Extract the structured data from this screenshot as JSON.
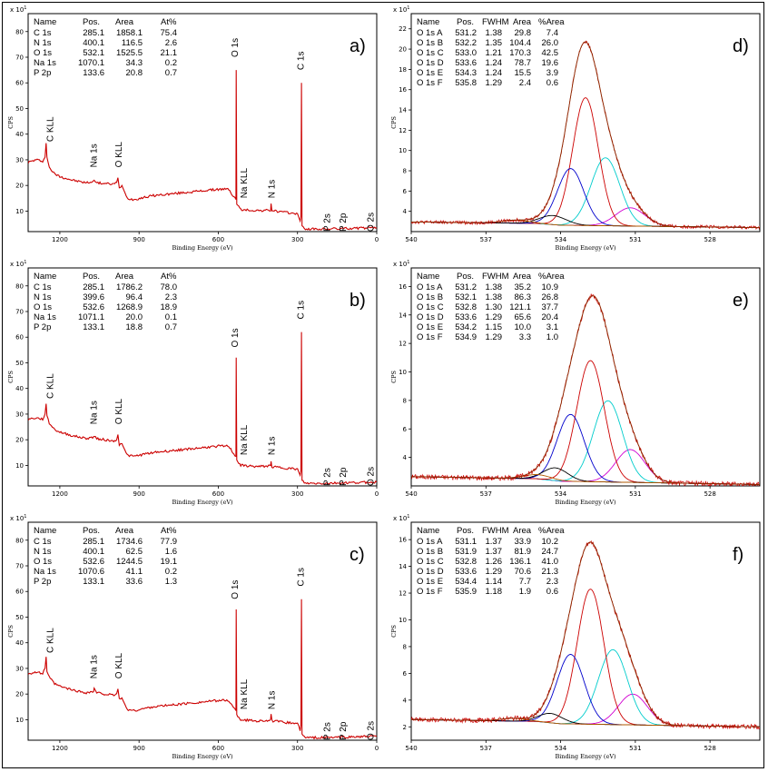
{
  "figure": {
    "x_axis_label": "Binding Energy (eV)",
    "y_axis_label": "CPS",
    "y_scale_label": "x 10",
    "y_scale_exp": "1"
  },
  "colors": {
    "spectrum": "#cc0000",
    "O 1s A": "#d100d1",
    "O 1s B": "#00cccc",
    "O 1s C": "#cc0000",
    "O 1s D": "#0000cc",
    "O 1s E": "#000000",
    "O 1s F": "#b25a00",
    "envelope": "#8b2a00",
    "background": "#000000"
  },
  "chart_data": [
    {
      "id": "a",
      "panel_label": "a)",
      "type": "line",
      "kind": "survey",
      "x_ticks": [
        "1200",
        "900",
        "600",
        "300",
        "0"
      ],
      "y_ticks": [
        "80",
        "70",
        "60",
        "50",
        "40",
        "30",
        "20",
        "10"
      ],
      "xlim": [
        1320,
        0
      ],
      "ylim": [
        2,
        87
      ],
      "spectrum_points": [
        [
          1320,
          29
        ],
        [
          1290,
          30
        ],
        [
          1265,
          29.5
        ],
        [
          1256,
          31
        ],
        [
          1252,
          36.5
        ],
        [
          1249,
          31
        ],
        [
          1240,
          27
        ],
        [
          1220,
          24.5
        ],
        [
          1200,
          23.5
        ],
        [
          1150,
          22
        ],
        [
          1100,
          21
        ],
        [
          1072,
          21.5
        ],
        [
          1070,
          22.5
        ],
        [
          1060,
          21
        ],
        [
          1000,
          20.5
        ],
        [
          985,
          21
        ],
        [
          980,
          23
        ],
        [
          975,
          19
        ],
        [
          965,
          20
        ],
        [
          945,
          15
        ],
        [
          920,
          14.5
        ],
        [
          850,
          16
        ],
        [
          700,
          17.5
        ],
        [
          600,
          18.5
        ],
        [
          560,
          18.5
        ],
        [
          545,
          16
        ],
        [
          533,
          14.5
        ],
        [
          532,
          65
        ],
        [
          530,
          13
        ],
        [
          515,
          10.5
        ],
        [
          450,
          10.2
        ],
        [
          402,
          10.3
        ],
        [
          400,
          13
        ],
        [
          397,
          10.2
        ],
        [
          350,
          9.5
        ],
        [
          300,
          9
        ],
        [
          290,
          6
        ],
        [
          287,
          8
        ],
        [
          285,
          60
        ],
        [
          283,
          4
        ],
        [
          270,
          3
        ],
        [
          200,
          3
        ],
        [
          0,
          3.5
        ]
      ],
      "table_headers": [
        "Name",
        "Pos.",
        "Area",
        "At%"
      ],
      "table_rows": [
        [
          "C 1s",
          "285.1",
          "1858.1",
          "75.4"
        ],
        [
          "N 1s",
          "400.1",
          "116.5",
          "2.6"
        ],
        [
          "O 1s",
          "532.1",
          "1525.5",
          "21.1"
        ],
        [
          "Na 1s",
          "1070.1",
          "34.3",
          "0.2"
        ],
        [
          "P 2p",
          "133.6",
          "20.8",
          "0.7"
        ]
      ],
      "peak_labels": [
        {
          "text": "C KLL",
          "x": 1240,
          "y": 37,
          "rot": -90
        },
        {
          "text": "Na 1s",
          "x": 1075,
          "y": 27,
          "rot": -90
        },
        {
          "text": "O KLL",
          "x": 980,
          "y": 27,
          "rot": -90
        },
        {
          "text": "O 1s",
          "x": 540,
          "y": 70,
          "rot": -90
        },
        {
          "text": "Na KLL",
          "x": 505,
          "y": 15,
          "rot": -90
        },
        {
          "text": "N 1s",
          "x": 400,
          "y": 15,
          "rot": -90
        },
        {
          "text": "C 1s",
          "x": 290,
          "y": 65,
          "rot": -90
        },
        {
          "text": "P 2s",
          "x": 190,
          "y": 2,
          "rot": -90
        },
        {
          "text": "P 2p",
          "x": 130,
          "y": 2,
          "rot": -90
        },
        {
          "text": "O 2s",
          "x": 25,
          "y": 2,
          "rot": -90
        }
      ]
    },
    {
      "id": "b",
      "panel_label": "b)",
      "type": "line",
      "kind": "survey",
      "x_ticks": [
        "1200",
        "900",
        "600",
        "300",
        "0"
      ],
      "y_ticks": [
        "80",
        "70",
        "60",
        "50",
        "40",
        "30",
        "20",
        "10"
      ],
      "xlim": [
        1320,
        0
      ],
      "ylim": [
        2,
        87
      ],
      "spectrum_points": [
        [
          1320,
          28
        ],
        [
          1290,
          28.5
        ],
        [
          1265,
          28
        ],
        [
          1256,
          30
        ],
        [
          1252,
          34
        ],
        [
          1249,
          29
        ],
        [
          1240,
          26.5
        ],
        [
          1220,
          24
        ],
        [
          1200,
          23
        ],
        [
          1150,
          21.5
        ],
        [
          1100,
          20.5
        ],
        [
          1072,
          21
        ],
        [
          1070,
          21.5
        ],
        [
          1060,
          20.5
        ],
        [
          1000,
          19.5
        ],
        [
          985,
          20
        ],
        [
          980,
          22
        ],
        [
          975,
          18
        ],
        [
          965,
          18.5
        ],
        [
          945,
          14
        ],
        [
          920,
          13.5
        ],
        [
          850,
          15
        ],
        [
          700,
          16.5
        ],
        [
          600,
          17.5
        ],
        [
          560,
          17.5
        ],
        [
          545,
          15
        ],
        [
          533,
          13.5
        ],
        [
          532,
          52
        ],
        [
          530,
          12
        ],
        [
          515,
          10
        ],
        [
          450,
          9.5
        ],
        [
          402,
          9.8
        ],
        [
          400,
          12
        ],
        [
          397,
          9.5
        ],
        [
          350,
          9
        ],
        [
          300,
          8.5
        ],
        [
          290,
          6
        ],
        [
          287,
          8
        ],
        [
          285,
          62
        ],
        [
          283,
          4
        ],
        [
          270,
          3
        ],
        [
          200,
          3
        ],
        [
          0,
          3.5
        ]
      ],
      "table_headers": [
        "Name",
        "Pos.",
        "Area",
        "At%"
      ],
      "table_rows": [
        [
          "C 1s",
          "285.1",
          "1786.2",
          "78.0"
        ],
        [
          "N 1s",
          "399.6",
          "96.4",
          "2.3"
        ],
        [
          "O 1s",
          "532.6",
          "1268.9",
          "18.9"
        ],
        [
          "Na 1s",
          "1071.1",
          "20.0",
          "0.1"
        ],
        [
          "P 2p",
          "133.1",
          "18.8",
          "0.7"
        ]
      ],
      "peak_labels": [
        {
          "text": "C KLL",
          "x": 1240,
          "y": 36,
          "rot": -90
        },
        {
          "text": "Na 1s",
          "x": 1075,
          "y": 26,
          "rot": -90
        },
        {
          "text": "O KLL",
          "x": 980,
          "y": 26,
          "rot": -90
        },
        {
          "text": "O 1s",
          "x": 540,
          "y": 56,
          "rot": -90
        },
        {
          "text": "Na KLL",
          "x": 505,
          "y": 14,
          "rot": -90
        },
        {
          "text": "N 1s",
          "x": 400,
          "y": 14,
          "rot": -90
        },
        {
          "text": "C 1s",
          "x": 290,
          "y": 67,
          "rot": -90
        },
        {
          "text": "P 2s",
          "x": 190,
          "y": 2,
          "rot": -90
        },
        {
          "text": "P 2p",
          "x": 130,
          "y": 2,
          "rot": -90
        },
        {
          "text": "O 2s",
          "x": 25,
          "y": 2,
          "rot": -90
        }
      ]
    },
    {
      "id": "c",
      "panel_label": "c)",
      "type": "line",
      "kind": "survey",
      "x_ticks": [
        "1200",
        "900",
        "600",
        "300",
        "0"
      ],
      "y_ticks": [
        "80",
        "70",
        "60",
        "50",
        "40",
        "30",
        "20",
        "10"
      ],
      "xlim": [
        1320,
        0
      ],
      "ylim": [
        2,
        87
      ],
      "spectrum_points": [
        [
          1320,
          28
        ],
        [
          1290,
          28.5
        ],
        [
          1265,
          28
        ],
        [
          1256,
          30
        ],
        [
          1252,
          34.5
        ],
        [
          1249,
          29
        ],
        [
          1240,
          26.5
        ],
        [
          1220,
          24
        ],
        [
          1200,
          23
        ],
        [
          1150,
          21.5
        ],
        [
          1100,
          20.5
        ],
        [
          1072,
          21
        ],
        [
          1070,
          22
        ],
        [
          1060,
          20.5
        ],
        [
          1000,
          19.5
        ],
        [
          985,
          20
        ],
        [
          980,
          22
        ],
        [
          975,
          18
        ],
        [
          965,
          18.5
        ],
        [
          945,
          14
        ],
        [
          920,
          13.5
        ],
        [
          850,
          15
        ],
        [
          700,
          16.5
        ],
        [
          600,
          17.5
        ],
        [
          560,
          17.5
        ],
        [
          545,
          15
        ],
        [
          533,
          13.5
        ],
        [
          532,
          53
        ],
        [
          530,
          12
        ],
        [
          515,
          10
        ],
        [
          450,
          9.5
        ],
        [
          402,
          9.8
        ],
        [
          400,
          12
        ],
        [
          397,
          9.5
        ],
        [
          350,
          9
        ],
        [
          300,
          8.5
        ],
        [
          290,
          6
        ],
        [
          287,
          8
        ],
        [
          285,
          57
        ],
        [
          283,
          4
        ],
        [
          270,
          3
        ],
        [
          200,
          3
        ],
        [
          0,
          3.5
        ]
      ],
      "table_headers": [
        "Name",
        "Pos.",
        "Area",
        "At%"
      ],
      "table_rows": [
        [
          "C 1s",
          "285.1",
          "1734.6",
          "77.9"
        ],
        [
          "N 1s",
          "400.1",
          "62.5",
          "1.6"
        ],
        [
          "O 1s",
          "532.6",
          "1244.5",
          "19.1"
        ],
        [
          "Na 1s",
          "1070.6",
          "41.1",
          "0.2"
        ],
        [
          "P 2p",
          "133.1",
          "33.6",
          "1.3"
        ]
      ],
      "peak_labels": [
        {
          "text": "C KLL",
          "x": 1240,
          "y": 36,
          "rot": -90
        },
        {
          "text": "Na 1s",
          "x": 1075,
          "y": 26,
          "rot": -90
        },
        {
          "text": "O KLL",
          "x": 980,
          "y": 26,
          "rot": -90
        },
        {
          "text": "O 1s",
          "x": 540,
          "y": 57,
          "rot": -90
        },
        {
          "text": "Na KLL",
          "x": 505,
          "y": 14,
          "rot": -90
        },
        {
          "text": "N 1s",
          "x": 400,
          "y": 14,
          "rot": -90
        },
        {
          "text": "C 1s",
          "x": 290,
          "y": 62,
          "rot": -90
        },
        {
          "text": "P 2s",
          "x": 190,
          "y": 2,
          "rot": -90
        },
        {
          "text": "P 2p",
          "x": 130,
          "y": 2,
          "rot": -90
        },
        {
          "text": "O 2s",
          "x": 25,
          "y": 2,
          "rot": -90
        }
      ]
    },
    {
      "id": "d",
      "panel_label": "d)",
      "type": "line",
      "kind": "fit",
      "x_ticks": [
        "540",
        "537",
        "534",
        "531",
        "528"
      ],
      "y_ticks": [
        "22",
        "20",
        "18",
        "16",
        "14",
        "12",
        "10",
        "8",
        "6",
        "4"
      ],
      "xlim": [
        540,
        526
      ],
      "ylim": [
        2,
        23.5
      ],
      "background_level": 2.6,
      "envelope_peak": 20.9,
      "table_headers": [
        "Name",
        "Pos.",
        "FWHM",
        "Area",
        "%Area"
      ],
      "components": [
        {
          "name": "O 1s A",
          "pos": "531.2",
          "fwhm": "1.38",
          "area": "29.8",
          "pct": "7.4",
          "height": 1.8
        },
        {
          "name": "O 1s B",
          "pos": "532.2",
          "fwhm": "1.35",
          "area": "104.4",
          "pct": "26.0",
          "height": 6.7
        },
        {
          "name": "O 1s C",
          "pos": "533.0",
          "fwhm": "1.21",
          "area": "170.3",
          "pct": "42.5",
          "height": 12.6
        },
        {
          "name": "O 1s D",
          "pos": "533.6",
          "fwhm": "1.24",
          "area": "78.7",
          "pct": "19.6",
          "height": 5.6
        },
        {
          "name": "O 1s E",
          "pos": "534.3",
          "fwhm": "1.24",
          "area": "15.5",
          "pct": "3.9",
          "height": 0.9
        },
        {
          "name": "O 1s F",
          "pos": "535.8",
          "fwhm": "1.29",
          "area": "2.4",
          "pct": "0.6",
          "height": 0.3
        }
      ]
    },
    {
      "id": "e",
      "panel_label": "e)",
      "type": "line",
      "kind": "fit",
      "x_ticks": [
        "540",
        "537",
        "534",
        "531",
        "528"
      ],
      "y_ticks": [
        "16",
        "14",
        "12",
        "10",
        "8",
        "6",
        "4"
      ],
      "xlim": [
        540,
        526
      ],
      "ylim": [
        2,
        17.3
      ],
      "background_level": 2.3,
      "envelope_peak": 15.7,
      "table_headers": [
        "Name",
        "Pos.",
        "FWHM",
        "Area",
        "%Area"
      ],
      "components": [
        {
          "name": "O 1s A",
          "pos": "531.2",
          "fwhm": "1.38",
          "area": "35.2",
          "pct": "10.9",
          "height": 2.3
        },
        {
          "name": "O 1s B",
          "pos": "532.1",
          "fwhm": "1.38",
          "area": "86.3",
          "pct": "26.8",
          "height": 5.7
        },
        {
          "name": "O 1s C",
          "pos": "532.8",
          "fwhm": "1.30",
          "area": "121.1",
          "pct": "37.7",
          "height": 8.5
        },
        {
          "name": "O 1s D",
          "pos": "533.6",
          "fwhm": "1.29",
          "area": "65.6",
          "pct": "20.4",
          "height": 4.7
        },
        {
          "name": "O 1s E",
          "pos": "534.2",
          "fwhm": "1.15",
          "area": "10.0",
          "pct": "3.1",
          "height": 0.9
        },
        {
          "name": "O 1s F",
          "pos": "534.9",
          "fwhm": "1.29",
          "area": "3.3",
          "pct": "1.0",
          "height": 0.3
        }
      ]
    },
    {
      "id": "f",
      "panel_label": "f)",
      "type": "line",
      "kind": "fit",
      "x_ticks": [
        "540",
        "537",
        "534",
        "531",
        "528"
      ],
      "y_ticks": [
        "16",
        "14",
        "12",
        "10",
        "8",
        "6",
        "4",
        "2"
      ],
      "xlim": [
        540,
        526
      ],
      "ylim": [
        1,
        17.3
      ],
      "background_level": 2.2,
      "envelope_peak": 16.1,
      "table_headers": [
        "Name",
        "Pos.",
        "FWHM",
        "Area",
        "%Area"
      ],
      "components": [
        {
          "name": "O 1s A",
          "pos": "531.1",
          "fwhm": "1.37",
          "area": "33.9",
          "pct": "10.2",
          "height": 2.3
        },
        {
          "name": "O 1s B",
          "pos": "531.9",
          "fwhm": "1.37",
          "area": "81.9",
          "pct": "24.7",
          "height": 5.6
        },
        {
          "name": "O 1s C",
          "pos": "532.8",
          "fwhm": "1.26",
          "area": "136.1",
          "pct": "41.0",
          "height": 10.1
        },
        {
          "name": "O 1s D",
          "pos": "533.6",
          "fwhm": "1.29",
          "area": "70.6",
          "pct": "21.3",
          "height": 5.2
        },
        {
          "name": "O 1s E",
          "pos": "534.4",
          "fwhm": "1.14",
          "area": "7.7",
          "pct": "2.3",
          "height": 0.7
        },
        {
          "name": "O 1s F",
          "pos": "535.9",
          "fwhm": "1.18",
          "area": "1.9",
          "pct": "0.6",
          "height": 0.2
        }
      ]
    }
  ]
}
